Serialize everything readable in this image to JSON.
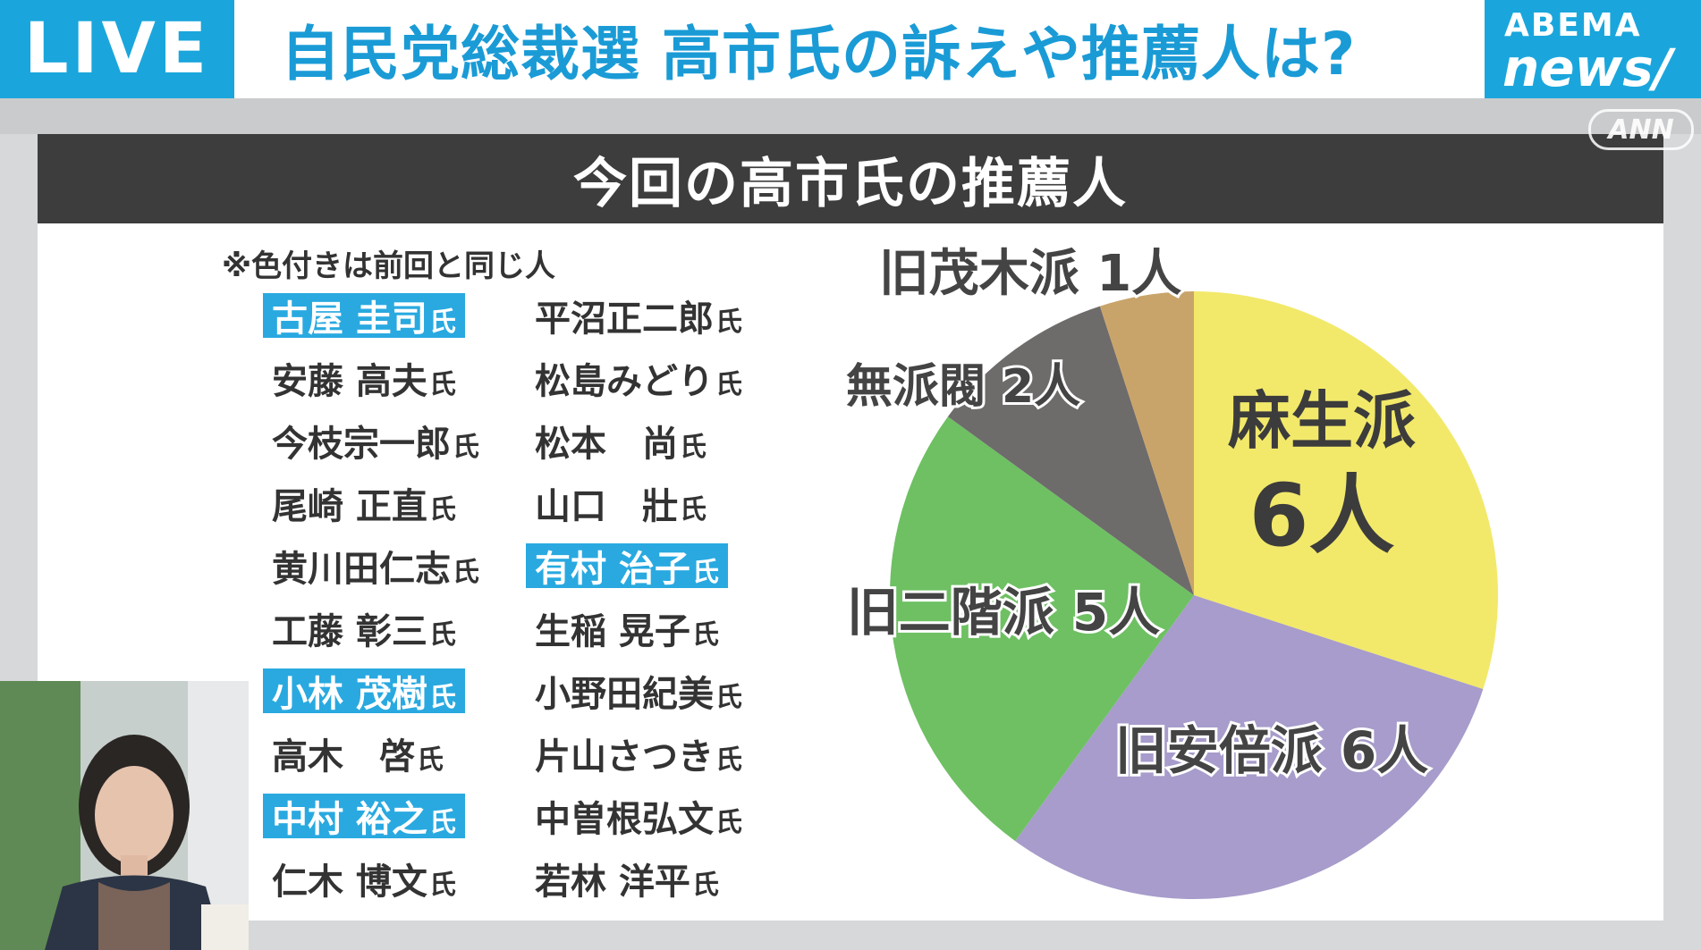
{
  "banner": {
    "live_label": "LIVE",
    "headline": "自民党総裁選 高市氏の訴えや推薦人は?",
    "logo_top": "ABEMA",
    "logo_bottom": "news/",
    "watermark": "ANN"
  },
  "card": {
    "title": "今回の高市氏の推薦人",
    "note": "※色付きは前回と同じ人",
    "honorific": "氏",
    "names_left": [
      {
        "name": "古屋 圭司",
        "highlight": true
      },
      {
        "name": "安藤 高夫",
        "highlight": false
      },
      {
        "name": "今枝宗一郎",
        "highlight": false
      },
      {
        "name": "尾崎 正直",
        "highlight": false
      },
      {
        "name": "黄川田仁志",
        "highlight": false
      },
      {
        "name": "工藤 彰三",
        "highlight": false
      },
      {
        "name": "小林 茂樹",
        "highlight": true
      },
      {
        "name": "高木　啓",
        "highlight": false
      },
      {
        "name": "中村 裕之",
        "highlight": true
      },
      {
        "name": "仁木 博文",
        "highlight": false
      }
    ],
    "names_right": [
      {
        "name": "平沼正二郎",
        "highlight": false
      },
      {
        "name": "松島みどり",
        "highlight": false
      },
      {
        "name": "松本　尚",
        "highlight": false
      },
      {
        "name": "山口　壯",
        "highlight": false
      },
      {
        "name": "有村 治子",
        "highlight": true
      },
      {
        "name": "生稲 晃子",
        "highlight": false
      },
      {
        "name": "小野田紀美",
        "highlight": false
      },
      {
        "name": "片山さつき",
        "highlight": false
      },
      {
        "name": "中曽根弘文",
        "highlight": false
      },
      {
        "name": "若林 洋平",
        "highlight": false
      }
    ]
  },
  "chart_data": {
    "type": "pie",
    "unit": "人",
    "slices": [
      {
        "label": "麻生派",
        "value": 6,
        "color": "#f2e96b"
      },
      {
        "label": "旧安倍派",
        "value": 6,
        "color": "#a79ccb"
      },
      {
        "label": "旧二階派",
        "value": 5,
        "color": "#6ec063"
      },
      {
        "label": "無派閥",
        "value": 2,
        "color": "#6e6b6b"
      },
      {
        "label": "旧茂木派",
        "value": 1,
        "color": "#c9a46a"
      }
    ],
    "slice_labels": [
      "麻生派",
      "6人",
      "旧安倍派 6人",
      "旧二階派 5人",
      "無派閥 2人",
      "旧茂木派 1人"
    ]
  }
}
